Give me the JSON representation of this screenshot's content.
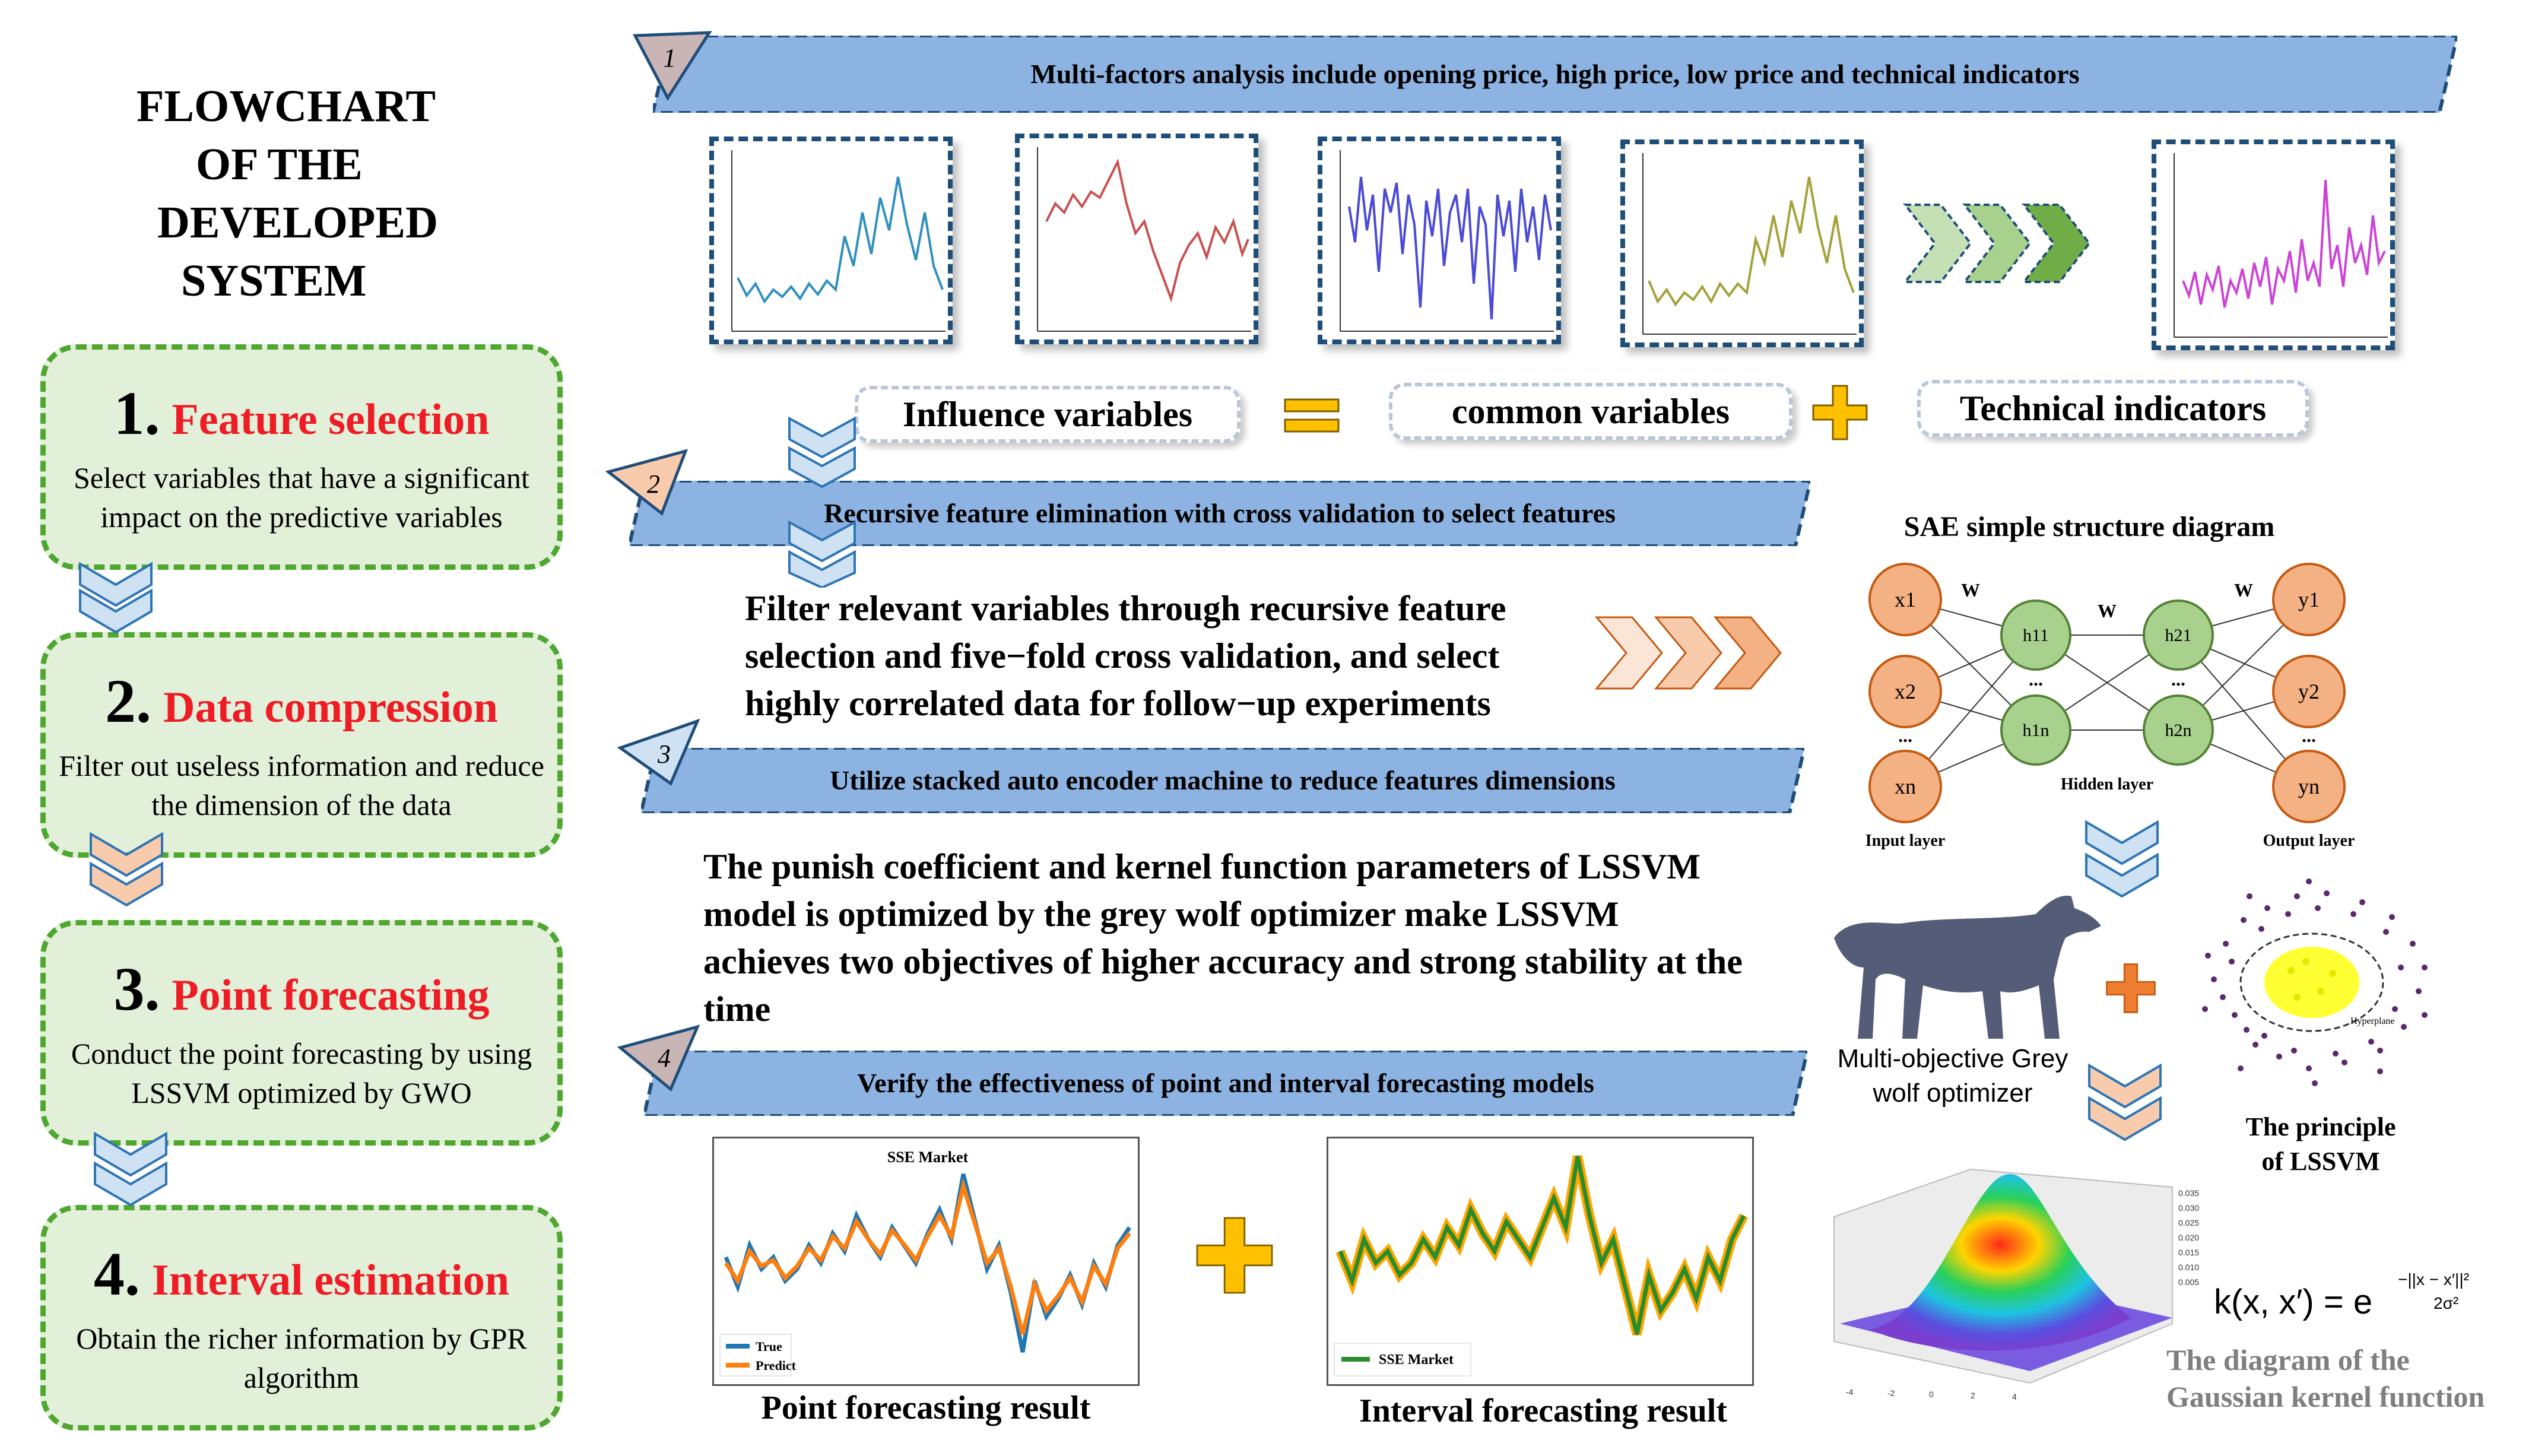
{
  "title": [
    "FLOWCHART",
    "OF THE",
    "DEVELOPED",
    "SYSTEM"
  ],
  "steps": [
    {
      "num": "1.",
      "name": "Feature selection",
      "desc": "Select variables that have a significant impact on the predictive variables"
    },
    {
      "num": "2.",
      "name": "Data  compression",
      "desc": "Filter out useless information and reduce the dimension of the data"
    },
    {
      "num": "3.",
      "name": "Point forecasting",
      "desc": "Conduct the point forecasting by using LSSVM optimized by GWO"
    },
    {
      "num": "4.",
      "name": "Interval  estimation",
      "desc": "Obtain the richer information by GPR algorithm"
    }
  ],
  "banners": [
    {
      "num": "1",
      "text": "Multi-factors analysis include opening price, high price, low price and technical indicators"
    },
    {
      "num": "2",
      "text": "Recursive feature elimination with cross validation to select features"
    },
    {
      "num": "3",
      "text": "Utilize stacked auto encoder machine to reduce features dimensions"
    },
    {
      "num": "4",
      "text": "Verify the effectiveness of point  and interval forecasting models"
    }
  ],
  "equation": {
    "influence": "Influence variables",
    "common": "common variables",
    "technical": "Technical indicators"
  },
  "filter_text": "Filter relevant variables through recursive feature selection and five−fold cross validation, and select highly correlated data for follow−up experiments",
  "lssvm_text": "The punish coefficient and kernel function parameters of LSSVM model is optimized by the grey wolf optimizer make LSSVM achieves two objectives of higher accuracy and strong stability at the time",
  "sae": {
    "title": "SAE simple structure diagram",
    "inputs": [
      "x1",
      "x2",
      "xn"
    ],
    "hidden1": [
      "h11",
      "h1n"
    ],
    "hidden2": [
      "h21",
      "h2n"
    ],
    "outputs": [
      "y1",
      "y2",
      "yn"
    ],
    "weight": "W",
    "dots": "...",
    "input_layer": "Input layer",
    "hidden_layer": "Hidden  layer",
    "output_layer": "Output  layer"
  },
  "gwo_label": "Multi-objective Grey wolf optimizer",
  "lssvm_principle": "The principle of  LSSVM",
  "hyperplane": "Hyperplane",
  "kernel_caption": "The diagram of the Gaussian kernel function",
  "kernel_formula": "k(x, x′) = e",
  "kernel_exponent_num": "−||x − x′||²",
  "kernel_exponent_den": "2σ²",
  "kernel_zticks": [
    "0.035",
    "0.030",
    "0.025",
    "0.020",
    "0.015",
    "0.010",
    "0.005"
  ],
  "kernel_xticks": [
    "-4",
    "-2",
    "0",
    "2",
    "4"
  ],
  "point_chart": {
    "title": "SSE Market",
    "legend": [
      "True",
      "Predict"
    ],
    "caption": "Point forecasting result"
  },
  "interval_chart": {
    "legend": "SSE Market",
    "caption": "Interval forecasting result"
  },
  "colors": {
    "green_box": "#e2f0d9",
    "green_border": "#4ea72e",
    "red": "#ee1c25",
    "banner": "#8db3e2",
    "dark_blue": "#1f4e79",
    "series1": "#2f8fc0",
    "series2": "#c9504f",
    "series3": "#4b4bd6",
    "series4": "#a4a23a",
    "series5": "#cc44d6"
  }
}
